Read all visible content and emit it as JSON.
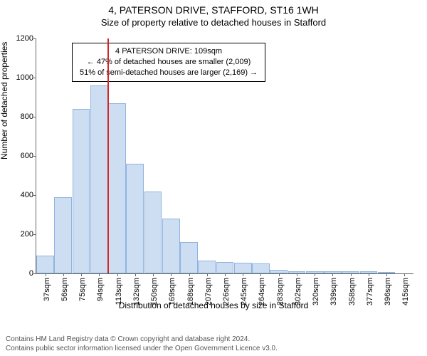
{
  "header": {
    "title": "4, PATERSON DRIVE, STAFFORD, ST16 1WH",
    "subtitle": "Size of property relative to detached houses in Stafford"
  },
  "chart": {
    "type": "histogram",
    "ylabel": "Number of detached properties",
    "xlabel": "Distribution of detached houses by size in Stafford",
    "ylim": [
      0,
      1200
    ],
    "ytick_step": 200,
    "bar_color": "#cdddf2",
    "bar_border": "#8fb4e0",
    "marker_color": "#d02828",
    "plot_bg": "#ffffff",
    "categories": [
      "37sqm",
      "56sqm",
      "75sqm",
      "94sqm",
      "113sqm",
      "132sqm",
      "150sqm",
      "169sqm",
      "188sqm",
      "207sqm",
      "226sqm",
      "245sqm",
      "264sqm",
      "283sqm",
      "302sqm",
      "320sqm",
      "339sqm",
      "358sqm",
      "377sqm",
      "396sqm",
      "415sqm"
    ],
    "values": [
      90,
      390,
      840,
      960,
      870,
      560,
      420,
      280,
      160,
      65,
      60,
      55,
      50,
      20,
      10,
      12,
      10,
      10,
      10,
      8,
      0
    ],
    "marker_index": 4,
    "info": {
      "line1": "4 PATERSON DRIVE: 109sqm",
      "line2": "← 47% of detached houses are smaller (2,009)",
      "line3": "51% of semi-detached houses are larger (2,169) →"
    }
  },
  "footer": {
    "line1": "Contains HM Land Registry data © Crown copyright and database right 2024.",
    "line2": "Contains public sector information licensed under the Open Government Licence v3.0."
  }
}
